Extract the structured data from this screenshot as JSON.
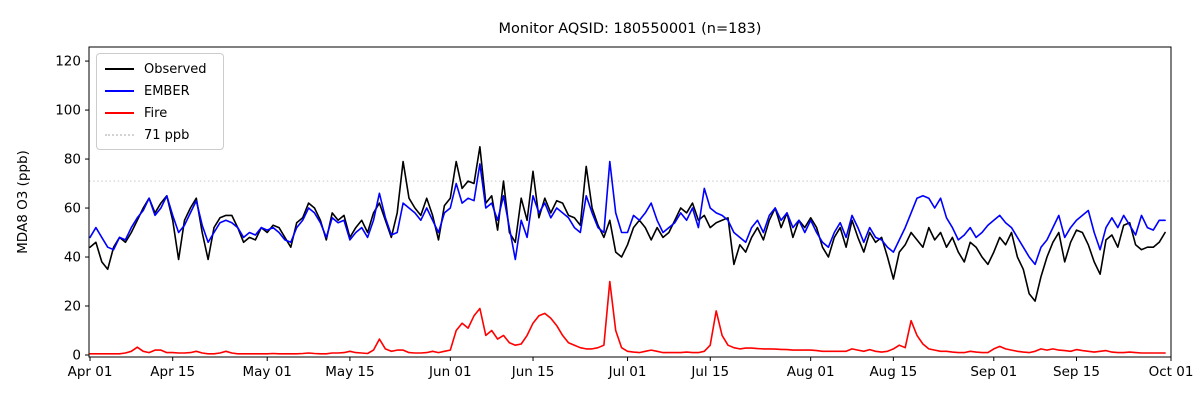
{
  "title": "Monitor AQSID: 180550001 (n=183)",
  "ylabel": "MDA8 O3 (ppb)",
  "colors": {
    "observed": "#000000",
    "ember": "#0000ff",
    "fire": "#ff0000",
    "threshold": "#d3d3d3",
    "axis": "#000000",
    "background": "#ffffff"
  },
  "legend": {
    "items": [
      {
        "label": "Observed",
        "color": "#000000",
        "style": "solid"
      },
      {
        "label": "EMBER",
        "color": "#0000ff",
        "style": "solid"
      },
      {
        "label": "Fire",
        "color": "#ff0000",
        "style": "solid"
      },
      {
        "label": "71 ppb",
        "color": "#d3d3d3",
        "style": "dotted"
      }
    ]
  },
  "chart_data": {
    "type": "line",
    "title": "Monitor AQSID: 180550001 (n=183)",
    "xlabel": "",
    "ylabel": "MDA8 O3 (ppb)",
    "n_points": 183,
    "x_unit": "day index from Apr 01",
    "x_range_days": [
      0,
      183
    ],
    "ylim": [
      -1,
      126
    ],
    "yticks": [
      0,
      20,
      40,
      60,
      80,
      100,
      120
    ],
    "xtick_days": [
      0,
      14,
      30,
      44,
      61,
      75,
      91,
      105,
      122,
      136,
      153,
      167,
      183
    ],
    "xtick_labels": [
      "Apr 01",
      "Apr 15",
      "May 01",
      "May 15",
      "Jun 01",
      "Jun 15",
      "Jul 01",
      "Jul 15",
      "Aug 01",
      "Aug 15",
      "Sep 01",
      "Sep 15",
      "Oct 01"
    ],
    "grid": false,
    "legend_position": "upper left",
    "threshold": {
      "label": "71 ppb",
      "value": 71,
      "color": "#d3d3d3",
      "style": "dotted"
    },
    "series": [
      {
        "name": "Observed",
        "color": "#000000",
        "values": [
          44,
          46,
          38,
          35,
          44,
          48,
          46,
          50,
          55,
          60,
          64,
          58,
          62,
          65,
          55,
          39,
          55,
          60,
          64,
          50,
          39,
          52,
          56,
          57,
          57,
          52,
          46,
          48,
          47,
          52,
          50,
          53,
          52,
          48,
          44,
          54,
          56,
          62,
          60,
          55,
          47,
          58,
          55,
          57,
          48,
          52,
          55,
          50,
          58,
          62,
          55,
          48,
          58,
          79,
          64,
          60,
          57,
          64,
          57,
          47,
          61,
          64,
          79,
          68,
          71,
          70,
          85,
          62,
          65,
          51,
          71,
          50,
          46,
          64,
          55,
          75,
          56,
          64,
          58,
          63,
          62,
          57,
          56,
          53,
          77,
          60,
          53,
          48,
          55,
          42,
          40,
          45,
          52,
          55,
          52,
          47,
          52,
          48,
          50,
          55,
          60,
          58,
          62,
          55,
          57,
          52,
          54,
          55,
          56,
          37,
          45,
          42,
          48,
          52,
          47,
          55,
          60,
          52,
          58,
          48,
          55,
          52,
          56,
          52,
          44,
          40,
          48,
          52,
          44,
          55,
          48,
          42,
          50,
          46,
          48,
          40,
          31,
          42,
          45,
          50,
          47,
          44,
          52,
          47,
          50,
          44,
          48,
          42,
          38,
          46,
          44,
          40,
          37,
          42,
          48,
          45,
          50,
          40,
          35,
          25,
          22,
          32,
          40,
          46,
          50,
          38,
          46,
          51,
          50,
          45,
          38,
          33,
          47,
          49,
          44,
          53,
          54,
          45,
          43,
          44,
          44,
          46,
          50
        ]
      },
      {
        "name": "EMBER",
        "color": "#0000ff",
        "values": [
          48,
          52,
          48,
          44,
          43,
          48,
          47,
          52,
          56,
          59,
          64,
          57,
          60,
          65,
          57,
          50,
          53,
          58,
          63,
          53,
          46,
          50,
          54,
          55,
          54,
          52,
          48,
          50,
          49,
          52,
          51,
          52,
          50,
          47,
          46,
          52,
          55,
          60,
          58,
          54,
          48,
          56,
          54,
          55,
          47,
          50,
          52,
          48,
          55,
          66,
          56,
          49,
          50,
          62,
          60,
          58,
          55,
          60,
          55,
          50,
          58,
          60,
          70,
          62,
          64,
          63,
          78,
          60,
          62,
          55,
          65,
          52,
          39,
          55,
          48,
          65,
          58,
          62,
          56,
          60,
          58,
          56,
          52,
          50,
          65,
          58,
          52,
          50,
          79,
          58,
          50,
          50,
          57,
          55,
          58,
          62,
          55,
          50,
          52,
          54,
          58,
          55,
          60,
          52,
          68,
          60,
          58,
          57,
          55,
          50,
          48,
          46,
          52,
          55,
          50,
          57,
          60,
          55,
          58,
          52,
          55,
          50,
          55,
          50,
          46,
          44,
          50,
          54,
          48,
          57,
          52,
          46,
          52,
          48,
          47,
          44,
          42,
          47,
          52,
          58,
          64,
          65,
          64,
          60,
          64,
          56,
          52,
          47,
          49,
          52,
          48,
          50,
          53,
          55,
          57,
          54,
          52,
          48,
          44,
          40,
          37,
          44,
          47,
          52,
          57,
          48,
          52,
          55,
          57,
          59,
          50,
          43,
          52,
          56,
          52,
          57,
          53,
          49,
          57,
          52,
          51,
          55,
          55
        ]
      },
      {
        "name": "Fire",
        "color": "#ff0000",
        "values": [
          0.5,
          0.5,
          0.5,
          0.5,
          0.5,
          0.5,
          0.8,
          1.5,
          3.2,
          1.5,
          1,
          2,
          2,
          1,
          1,
          0.8,
          0.8,
          1,
          1.5,
          0.8,
          0.5,
          0.5,
          0.8,
          1.5,
          0.8,
          0.5,
          0.5,
          0.5,
          0.5,
          0.5,
          0.5,
          0.6,
          0.5,
          0.5,
          0.5,
          0.5,
          0.6,
          0.8,
          0.6,
          0.5,
          0.5,
          0.8,
          0.8,
          1,
          1.5,
          1,
          0.8,
          0.6,
          2,
          6.5,
          2.5,
          1.5,
          2,
          2,
          1,
          0.8,
          0.8,
          1,
          1.5,
          1,
          1.5,
          2,
          10,
          13,
          11,
          16,
          19,
          8,
          10,
          6.5,
          8,
          5,
          4,
          4.5,
          8,
          13,
          16,
          17,
          15,
          12,
          8,
          5,
          4,
          3,
          2.5,
          2.5,
          3,
          4,
          30,
          10,
          3,
          1.5,
          1.2,
          1,
          1.5,
          2,
          1.5,
          1,
          1,
          1,
          1,
          1.2,
          1,
          1,
          1.5,
          4,
          18,
          8,
          4,
          3,
          2.5,
          2.8,
          2.8,
          2.6,
          2.5,
          2.5,
          2.4,
          2.3,
          2.2,
          2,
          2,
          2,
          2,
          1.8,
          1.5,
          1.5,
          1.5,
          1.5,
          1.5,
          2.5,
          2,
          1.5,
          2.2,
          1.5,
          1.2,
          1.5,
          2.5,
          4,
          3,
          14,
          8,
          4.5,
          2.5,
          2,
          1.5,
          1.5,
          1.2,
          1,
          1,
          1.5,
          1.2,
          1,
          1,
          2.5,
          3.5,
          2.5,
          2,
          1.5,
          1.2,
          1,
          1.5,
          2.5,
          2,
          2.5,
          2,
          1.8,
          1.5,
          2.2,
          1.8,
          1.5,
          1.2,
          1.5,
          1.8,
          1.2,
          1,
          1,
          1.2,
          1,
          0.8,
          0.8,
          0.8,
          0.8,
          0.8
        ]
      }
    ]
  }
}
